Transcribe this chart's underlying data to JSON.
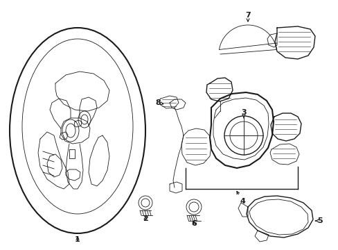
{
  "background_color": "#ffffff",
  "line_color": "#1a1a1a",
  "lw_thick": 1.5,
  "lw_med": 1.0,
  "lw_thin": 0.6,
  "figsize": [
    4.89,
    3.6
  ],
  "dpi": 100
}
